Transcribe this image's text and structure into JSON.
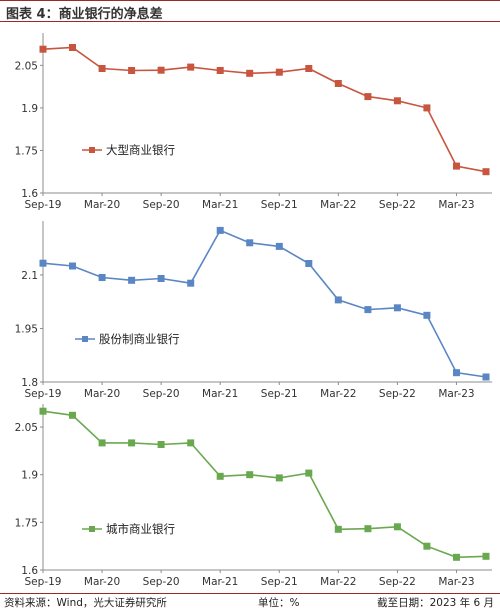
{
  "figure_title": "图表 4：商业银行的净息差",
  "footer": {
    "source": "资料来源：Wind，光大证券研究所",
    "unit": "单位：%",
    "cutoff": "截至日期：2023 年 6 月"
  },
  "chart_data": [
    {
      "type": "line",
      "x": [
        "2019Q3",
        "2019Q4",
        "2020Q1",
        "2020Q2",
        "2020Q3",
        "2020Q4",
        "2021Q1",
        "2021Q2",
        "2021Q3",
        "2021Q4",
        "2022Q1",
        "2022Q2",
        "2022Q3",
        "2022Q4",
        "2023Q1",
        "2023Q2"
      ],
      "tick_labels": [
        "Sep-19",
        "Mar-20",
        "Sep-20",
        "Mar-21",
        "Sep-21",
        "Mar-22",
        "Sep-22",
        "Mar-23"
      ],
      "series": [
        {
          "name": "大型商业银行",
          "color": "#c8553d",
          "values": [
            2.107,
            2.113,
            2.039,
            2.032,
            2.033,
            2.044,
            2.032,
            2.022,
            2.026,
            2.039,
            1.986,
            1.94,
            1.925,
            1.9,
            1.695,
            1.675
          ]
        }
      ],
      "yticks": [
        "1.6",
        "1.75",
        "1.9",
        "2.05"
      ],
      "ylim": [
        1.6,
        2.15
      ],
      "legend": "left-lower",
      "grid": false
    },
    {
      "type": "line",
      "x": [
        "2019Q3",
        "2019Q4",
        "2020Q1",
        "2020Q2",
        "2020Q3",
        "2020Q4",
        "2021Q1",
        "2021Q2",
        "2021Q3",
        "2021Q4",
        "2022Q1",
        "2022Q2",
        "2022Q3",
        "2022Q4",
        "2023Q1",
        "2023Q2"
      ],
      "tick_labels": [
        "Sep-19",
        "Mar-20",
        "Sep-20",
        "Mar-21",
        "Sep-21",
        "Mar-22",
        "Sep-22",
        "Mar-23"
      ],
      "series": [
        {
          "name": "股份制商业银行",
          "color": "#5a86c4",
          "values": [
            2.133,
            2.125,
            2.093,
            2.085,
            2.09,
            2.077,
            2.225,
            2.19,
            2.18,
            2.132,
            2.03,
            2.003,
            2.008,
            1.987,
            1.826,
            1.814
          ]
        }
      ],
      "yticks": [
        "1.8",
        "1.95",
        "2.1"
      ],
      "ylim": [
        1.8,
        2.24
      ],
      "legend": "left-lower",
      "grid": false
    },
    {
      "type": "line",
      "x": [
        "2019Q3",
        "2019Q4",
        "2020Q1",
        "2020Q2",
        "2020Q3",
        "2020Q4",
        "2021Q1",
        "2021Q2",
        "2021Q3",
        "2021Q4",
        "2022Q1",
        "2022Q2",
        "2022Q3",
        "2022Q4",
        "2023Q1",
        "2023Q2"
      ],
      "tick_labels": [
        "Sep-19",
        "Mar-20",
        "Sep-20",
        "Mar-21",
        "Sep-21",
        "Mar-22",
        "Sep-22",
        "Mar-23"
      ],
      "series": [
        {
          "name": "城市商业银行",
          "color": "#6aa84f",
          "values": [
            2.1,
            2.087,
            2.0,
            2.0,
            1.995,
            2.0,
            1.895,
            1.9,
            1.89,
            1.905,
            1.728,
            1.73,
            1.736,
            1.675,
            1.64,
            1.643
          ]
        }
      ],
      "yticks": [
        "1.6",
        "1.75",
        "1.9",
        "2.05"
      ],
      "ylim": [
        1.6,
        2.11
      ],
      "legend": "left-lower",
      "grid": false
    }
  ]
}
